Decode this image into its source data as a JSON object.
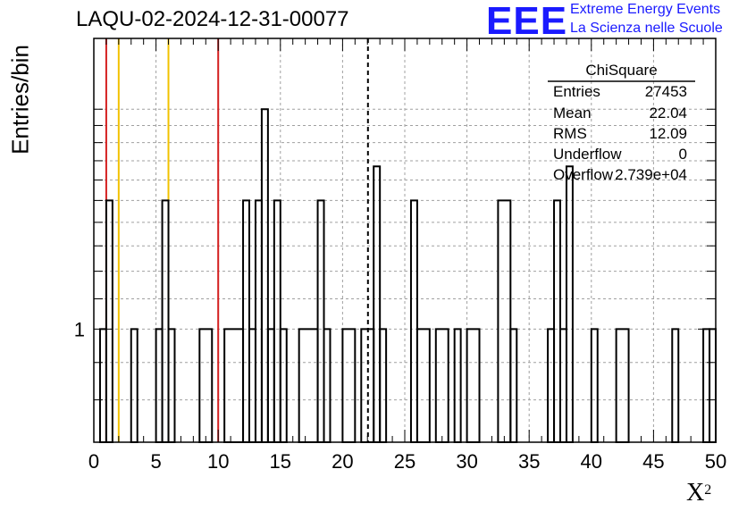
{
  "chart_data": {
    "type": "bar",
    "title": "LAQU-02-2024-12-31-00077",
    "xlabel": "X",
    "xlabel_superscript": "2",
    "ylabel": "Entries/bin",
    "xlim": [
      0,
      50
    ],
    "ylim": [
      0.7,
      2.5
    ],
    "yscale": "log",
    "grid": true,
    "bin_width": 0.5,
    "x_ticks": [
      0,
      5,
      10,
      15,
      20,
      25,
      30,
      35,
      40,
      45,
      50
    ],
    "y_tick_labels": [
      {
        "value": 1,
        "label": "1"
      }
    ],
    "histogram": [
      {
        "x0": 0.5,
        "x1": 1.0,
        "y": 1
      },
      {
        "x0": 1.0,
        "x1": 1.5,
        "y": 1.5
      },
      {
        "x0": 3.0,
        "x1": 3.5,
        "y": 1
      },
      {
        "x0": 5.0,
        "x1": 5.5,
        "y": 1
      },
      {
        "x0": 5.5,
        "x1": 6.0,
        "y": 1.5
      },
      {
        "x0": 6.0,
        "x1": 6.5,
        "y": 1
      },
      {
        "x0": 8.5,
        "x1": 9.5,
        "y": 1
      },
      {
        "x0": 10.5,
        "x1": 12.0,
        "y": 1
      },
      {
        "x0": 12.0,
        "x1": 12.5,
        "y": 1.5
      },
      {
        "x0": 12.5,
        "x1": 13.0,
        "y": 1
      },
      {
        "x0": 13.0,
        "x1": 13.5,
        "y": 1.5
      },
      {
        "x0": 13.5,
        "x1": 14.0,
        "y": 2
      },
      {
        "x0": 14.0,
        "x1": 14.5,
        "y": 1
      },
      {
        "x0": 14.5,
        "x1": 15.0,
        "y": 1.5
      },
      {
        "x0": 15.0,
        "x1": 15.5,
        "y": 1
      },
      {
        "x0": 16.5,
        "x1": 18.0,
        "y": 1
      },
      {
        "x0": 18.0,
        "x1": 18.5,
        "y": 1.5
      },
      {
        "x0": 18.5,
        "x1": 19.0,
        "y": 1
      },
      {
        "x0": 20.0,
        "x1": 21.0,
        "y": 1
      },
      {
        "x0": 21.5,
        "x1": 22.5,
        "y": 1
      },
      {
        "x0": 22.5,
        "x1": 23.0,
        "y": 1.67
      },
      {
        "x0": 23.0,
        "x1": 23.5,
        "y": 1
      },
      {
        "x0": 25.5,
        "x1": 26.0,
        "y": 1.5
      },
      {
        "x0": 26.0,
        "x1": 27.0,
        "y": 1
      },
      {
        "x0": 27.5,
        "x1": 28.5,
        "y": 1
      },
      {
        "x0": 29.0,
        "x1": 29.5,
        "y": 1
      },
      {
        "x0": 30.0,
        "x1": 31.0,
        "y": 1
      },
      {
        "x0": 32.5,
        "x1": 33.5,
        "y": 1.5
      },
      {
        "x0": 33.5,
        "x1": 34.0,
        "y": 1
      },
      {
        "x0": 36.5,
        "x1": 37.0,
        "y": 1
      },
      {
        "x0": 37.0,
        "x1": 37.5,
        "y": 1.5
      },
      {
        "x0": 37.5,
        "x1": 38.0,
        "y": 1
      },
      {
        "x0": 38.0,
        "x1": 38.5,
        "y": 1.67
      },
      {
        "x0": 40.0,
        "x1": 40.5,
        "y": 1
      },
      {
        "x0": 42.0,
        "x1": 43.0,
        "y": 1
      },
      {
        "x0": 46.5,
        "x1": 47.0,
        "y": 1
      },
      {
        "x0": 49.0,
        "x1": 49.5,
        "y": 1
      },
      {
        "x0": 49.5,
        "x1": 50.0,
        "y": 1
      }
    ],
    "vertical_lines": [
      {
        "x": 1.0,
        "color": "#d42020",
        "style": "solid"
      },
      {
        "x": 2.0,
        "color": "#f2c200",
        "style": "solid"
      },
      {
        "x": 6.0,
        "color": "#f2c200",
        "style": "solid"
      },
      {
        "x": 10.0,
        "color": "#d42020",
        "style": "solid"
      },
      {
        "x": 22.04,
        "color": "#000000",
        "style": "dashed"
      }
    ]
  },
  "logo": {
    "mark": "EEE",
    "line1": "Extreme Energy Events",
    "line2": "La Scienza nelle Scuole",
    "color": "#1a1aff"
  },
  "stats": {
    "title": "ChiSquare",
    "rows": [
      {
        "key": "Entries",
        "value": "27453"
      },
      {
        "key": "Mean",
        "value": "22.04"
      },
      {
        "key": "RMS",
        "value": "12.09"
      },
      {
        "key": "Underflow",
        "value": "0"
      },
      {
        "key": "Overflow",
        "value": "2.739e+04"
      }
    ]
  }
}
